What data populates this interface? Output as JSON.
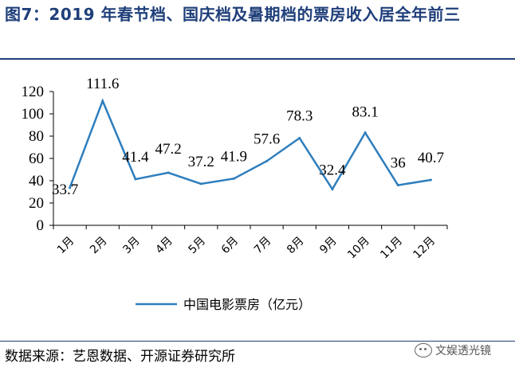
{
  "header": {
    "title": "图7：2019 年春节档、国庆档及暑期档的票房收入居全年前三"
  },
  "footer": {
    "source": "数据来源：艺恩数据、开源证券研究所",
    "watermark": "文娱透光镜"
  },
  "colors": {
    "line": "#2e7ebd",
    "title": "#1f3f7a"
  },
  "chart_data": {
    "type": "line",
    "title": "",
    "xlabel": "",
    "ylabel": "",
    "categories": [
      "1月",
      "2月",
      "3月",
      "4月",
      "5月",
      "6月",
      "7月",
      "8月",
      "9月",
      "10月",
      "11月",
      "12月"
    ],
    "series": [
      {
        "name": "中国电影票房（亿元）",
        "values": [
          33.7,
          111.6,
          41.4,
          47.2,
          37.2,
          41.9,
          57.6,
          78.3,
          32.4,
          83.1,
          36,
          40.7
        ],
        "labels": [
          "33.7",
          "111.6",
          "41.4",
          "47.2",
          "37.2",
          "41.9",
          "57.6",
          "78.3",
          "32.4",
          "83.1",
          "36",
          "40.7"
        ]
      }
    ],
    "yticks": [
      0,
      20,
      40,
      60,
      80,
      100,
      120
    ],
    "ylim": [
      0,
      120
    ],
    "grid": false,
    "legend_position": "bottom"
  }
}
